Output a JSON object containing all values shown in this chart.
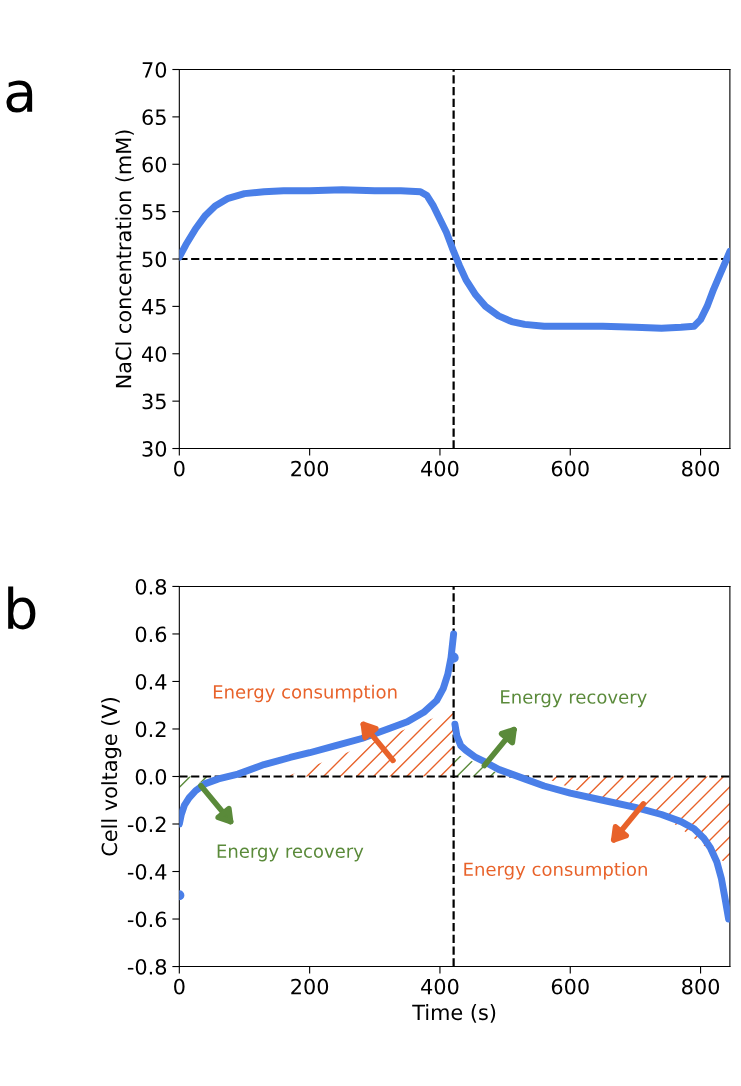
{
  "chart_data": [
    {
      "type": "line",
      "title": "a",
      "ylabel": "NaCl concentration (mM)",
      "xlim": [
        0,
        845
      ],
      "xticks": [
        0,
        200,
        400,
        600,
        800
      ],
      "ylim": [
        30,
        70
      ],
      "yticks": [
        30,
        35,
        40,
        45,
        50,
        55,
        60,
        65,
        70
      ],
      "grid": false,
      "line_style": "solid",
      "ref_lines": [
        {
          "axis": "x",
          "value": 421,
          "color": "#000000",
          "line_style": "dashed"
        },
        {
          "axis": "y",
          "value": 50,
          "color": "#000000",
          "line_style": "dashed"
        }
      ],
      "series": [
        {
          "color": "#4a7fe8",
          "x": [
            0,
            10,
            25,
            40,
            55,
            75,
            100,
            130,
            160,
            200,
            250,
            300,
            340,
            370,
            380,
            390,
            400,
            410,
            421,
            430,
            440,
            455,
            470,
            490,
            510,
            530,
            560,
            600,
            650,
            700,
            740,
            770,
            790,
            800,
            810,
            820,
            830,
            840,
            845
          ],
          "values": [
            50.2,
            51.5,
            53.2,
            54.6,
            55.6,
            56.4,
            56.9,
            57.1,
            57.2,
            57.2,
            57.3,
            57.2,
            57.2,
            57.1,
            56.7,
            55.6,
            54.2,
            52.8,
            50.8,
            49.3,
            47.8,
            46.2,
            45.0,
            44.0,
            43.4,
            43.1,
            42.9,
            42.9,
            42.9,
            42.8,
            42.7,
            42.8,
            42.9,
            43.6,
            45.0,
            46.8,
            48.4,
            50.0,
            50.8
          ]
        }
      ]
    },
    {
      "type": "line",
      "title": "b",
      "xlabel": "Time (s)",
      "ylabel": "Cell voltage (V)",
      "xlim": [
        0,
        845
      ],
      "xticks": [
        0,
        200,
        400,
        600,
        800
      ],
      "ylim": [
        -0.8,
        0.8
      ],
      "yticks": [
        -0.8,
        -0.6,
        -0.4,
        -0.2,
        {
          "value": 0,
          "label": "0.0"
        },
        0.2,
        0.4,
        0.6,
        0.8
      ],
      "grid": false,
      "line_style": "solid",
      "ref_lines": [
        {
          "axis": "x",
          "value": 421,
          "color": "#000000",
          "line_style": "dashed"
        },
        {
          "axis": "y",
          "value": 0,
          "color": "#000000",
          "line_style": "dashed"
        }
      ],
      "series": [
        {
          "type": "area",
          "color": "#e8622a",
          "x": [
            165,
            421,
            421
          ],
          "values": [
            0,
            0.28,
            0
          ]
        },
        {
          "type": "area",
          "color": "#5a8a3a",
          "x": [
            421,
            500
          ],
          "values": [
            0.1,
            0
          ]
        },
        {
          "type": "area",
          "color": "#5a8a3a",
          "x": [
            0,
            51
          ],
          "values": [
            -0.07,
            0
          ]
        },
        {
          "type": "area",
          "color": "#e8622a",
          "x": [
            555,
            650,
            750,
            800,
            845
          ],
          "values": [
            0,
            -0.1,
            -0.18,
            -0.28,
            -0.38
          ]
        },
        {
          "color": "#4a7fe8",
          "x": [
            0,
            3,
            8,
            15,
            25,
            40,
            60,
            90,
            130,
            170,
            200,
            240,
            280,
            320,
            350,
            375,
            395,
            405,
            412,
            417,
            421
          ],
          "values": [
            -0.2,
            -0.16,
            -0.12,
            -0.09,
            -0.06,
            -0.03,
            -0.01,
            0.01,
            0.05,
            0.08,
            0.1,
            0.13,
            0.16,
            0.2,
            0.23,
            0.27,
            0.32,
            0.37,
            0.43,
            0.5,
            0.6
          ]
        },
        {
          "color": "#4a7fe8",
          "x": [
            423,
            426,
            432,
            440,
            455,
            470,
            490,
            510,
            530,
            560,
            600,
            650,
            700,
            740,
            770,
            790,
            805,
            815,
            825,
            832,
            838,
            843
          ],
          "values": [
            0.22,
            0.17,
            0.13,
            0.11,
            0.08,
            0.06,
            0.03,
            0.01,
            -0.01,
            -0.04,
            -0.07,
            -0.1,
            -0.13,
            -0.16,
            -0.19,
            -0.22,
            -0.26,
            -0.3,
            -0.36,
            -0.43,
            -0.52,
            -0.6
          ]
        },
        {
          "type": "scatter",
          "color": "#4a7fe8",
          "marker": "circle",
          "x": [
            0,
            421
          ],
          "values": [
            -0.5,
            0.5
          ]
        }
      ],
      "annotations": [
        "Energy consumption",
        "Energy recovery",
        "Energy recovery",
        "Energy consumption"
      ]
    }
  ]
}
